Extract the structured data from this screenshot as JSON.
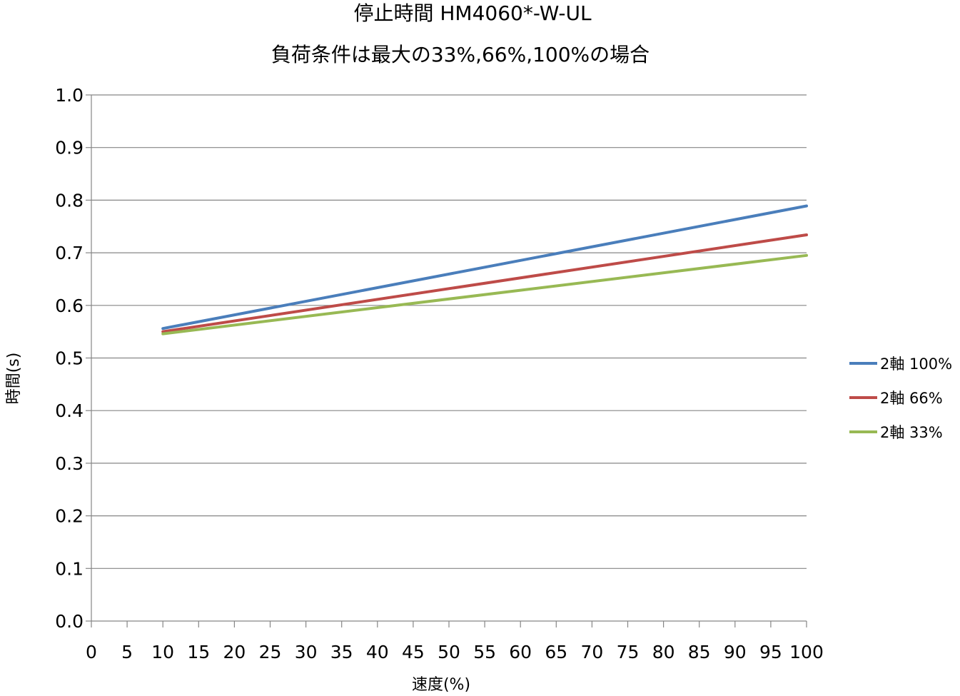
{
  "chart_data": {
    "type": "line",
    "title": "停止時間 HM4060*-W-UL",
    "subtitle": "負荷条件は最大の33%,66%,100%の場合",
    "xlabel": "速度(%)",
    "ylabel": "時間(s)",
    "xlim": [
      0,
      100
    ],
    "ylim": [
      0,
      1.0
    ],
    "x_ticks": [
      "0",
      "5",
      "10",
      "15",
      "20",
      "25",
      "30",
      "35",
      "40",
      "45",
      "50",
      "55",
      "60",
      "65",
      "70",
      "75",
      "80",
      "85",
      "90",
      "95",
      "100"
    ],
    "y_ticks": [
      "0.0",
      "0.1",
      "0.2",
      "0.3",
      "0.4",
      "0.5",
      "0.6",
      "0.7",
      "0.8",
      "0.9",
      "1.0"
    ],
    "grid": "horizontal",
    "legend_position": "right",
    "series": [
      {
        "name": "2軸 100%",
        "color": "#4a7ebb",
        "x": [
          10,
          100
        ],
        "y": [
          0.556,
          0.789
        ]
      },
      {
        "name": "2軸 66%",
        "color": "#be4b48",
        "x": [
          10,
          100
        ],
        "y": [
          0.55,
          0.734
        ]
      },
      {
        "name": "2軸 33%",
        "color": "#98b954",
        "x": [
          10,
          100
        ],
        "y": [
          0.546,
          0.695
        ]
      }
    ]
  }
}
